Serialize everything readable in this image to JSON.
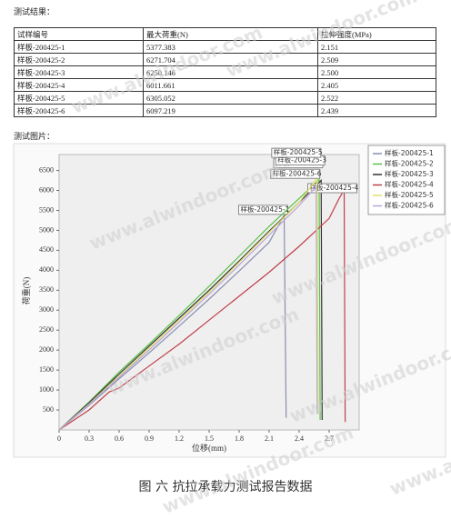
{
  "results_label": "测试结果：",
  "table": {
    "headers": [
      "试样编号",
      "最大荷重(N)",
      "拉伸强度(MPa)"
    ],
    "rows": [
      [
        "样板-200425-1",
        "5377.383",
        "2.151"
      ],
      [
        "样板-200425-2",
        "6271.704",
        "2.509"
      ],
      [
        "样板-200425-3",
        "6250.146",
        "2.500"
      ],
      [
        "样板-200425-4",
        "6011.661",
        "2.405"
      ],
      [
        "样板-200425-5",
        "6305.052",
        "2.522"
      ],
      [
        "样板-200425-6",
        "6097.219",
        "2.439"
      ]
    ]
  },
  "chart_label": "测试图片：",
  "watermark": "www.alwindoor.com",
  "caption": "图 六 抗拉承载力测试报告数据",
  "chart_data": {
    "type": "line",
    "x_label": "位移(mm)",
    "y_label": "荷重(N)",
    "xlim": [
      0,
      3
    ],
    "ylim": [
      0,
      6900
    ],
    "xticks": [
      0,
      0.3,
      0.6,
      0.9,
      1.2,
      1.5,
      1.8,
      2.1,
      2.4,
      2.7
    ],
    "yticks": [
      500,
      1000,
      1500,
      2000,
      2500,
      3000,
      3500,
      4000,
      4500,
      5000,
      5500,
      6000,
      6500
    ],
    "legend": "upper right",
    "series": [
      {
        "name": "样板-200425-1",
        "color": "#8a8fb0",
        "x": [
          0,
          0.3,
          0.6,
          0.9,
          1.2,
          1.5,
          1.8,
          2.1,
          2.25,
          2.27
        ],
        "values": [
          0,
          620,
          1280,
          1930,
          2600,
          3280,
          3980,
          4700,
          5377.383,
          300
        ]
      },
      {
        "name": "样板-200425-2",
        "color": "#5bc24a",
        "x": [
          0,
          0.3,
          0.6,
          0.9,
          1.2,
          1.5,
          1.8,
          2.1,
          2.4,
          2.6,
          2.61
        ],
        "values": [
          0,
          700,
          1450,
          2150,
          2870,
          3600,
          4350,
          5100,
          5800,
          6271.704,
          250
        ]
      },
      {
        "name": "样板-200425-3",
        "color": "#333333",
        "x": [
          0,
          0.3,
          0.6,
          0.9,
          1.2,
          1.5,
          1.8,
          2.1,
          2.4,
          2.62,
          2.63
        ],
        "values": [
          0,
          680,
          1400,
          2100,
          2800,
          3500,
          4230,
          4980,
          5700,
          6250.146,
          250
        ]
      },
      {
        "name": "样板-200425-4",
        "color": "#c0404a",
        "x": [
          0,
          0.3,
          0.5,
          0.6,
          0.9,
          1.2,
          1.5,
          1.8,
          2.1,
          2.4,
          2.7,
          2.8,
          2.85,
          2.86
        ],
        "values": [
          0,
          500,
          950,
          1050,
          1600,
          2150,
          2750,
          3350,
          3950,
          4600,
          5300,
          5800,
          6011.661,
          200
        ]
      },
      {
        "name": "样板-200425-5",
        "color": "#e3df6a",
        "x": [
          0,
          0.3,
          0.6,
          0.9,
          1.2,
          1.5,
          1.8,
          2.1,
          2.4,
          2.58,
          2.59
        ],
        "values": [
          0,
          650,
          1350,
          2050,
          2750,
          3450,
          4200,
          4950,
          5700,
          6305.052,
          400
        ]
      },
      {
        "name": "样板-200425-6",
        "color": "#b9a7d8",
        "x": [
          0,
          0.3,
          0.6,
          0.9,
          1.2,
          1.5,
          1.8,
          2.1,
          2.4,
          2.57,
          2.58
        ],
        "values": [
          0,
          640,
          1320,
          2000,
          2700,
          3400,
          4130,
          4880,
          5620,
          6097.219,
          400
        ]
      }
    ]
  }
}
